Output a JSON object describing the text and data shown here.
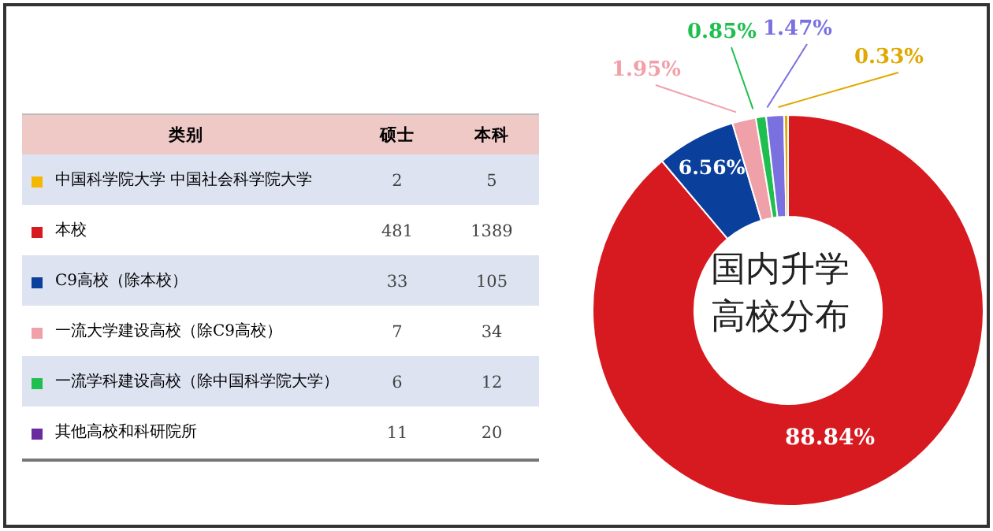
{
  "chart_data": [
    {
      "type": "other",
      "legend_title": "类别",
      "categories": [
        "中国科学院大学 中国社会科学院大学",
        "本校",
        "C9高校（除本校）",
        "一流大学建设高校（除C9高校）",
        "一流学科建设高校（除中国科学院大学）",
        "其他高校和科研院所"
      ],
      "colors": [
        "#f5b800",
        "#d71920",
        "#0b3f9c",
        "#f0a0a8",
        "#1fbf4f",
        "#6a2aa0"
      ],
      "series": [
        {
          "name": "硕士",
          "values": [
            2,
            481,
            33,
            7,
            6,
            11
          ]
        },
        {
          "name": "本科",
          "values": [
            5,
            1389,
            105,
            34,
            12,
            20
          ]
        }
      ],
      "data_labels": true
    },
    {
      "type": "donut",
      "title": "国内升学高校分布",
      "categories": [
        null,
        null,
        null,
        null,
        null,
        null
      ],
      "values": [
        88.84,
        6.56,
        1.95,
        0.85,
        1.47,
        0.33
      ],
      "value_labels": [
        "88.84%",
        "6.56%",
        "1.95%",
        "0.85%",
        "1.47%",
        "0.33%"
      ],
      "colors": [
        "#d71920",
        "#0b3f9c",
        "#f0a0a8",
        "#1fbf4f",
        "#7a70e0",
        "#e0a800"
      ]
    }
  ]
}
